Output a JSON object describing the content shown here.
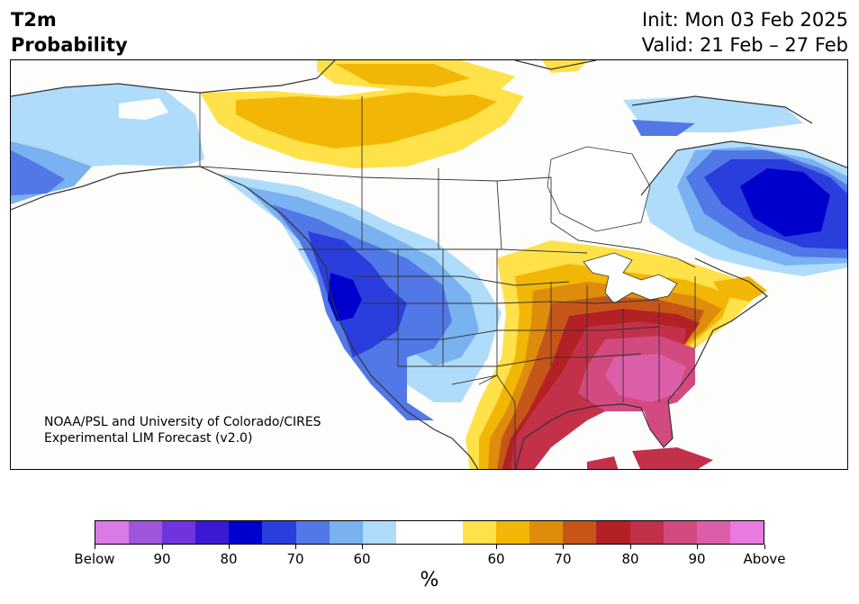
{
  "header": {
    "variable": "T2m",
    "product": "Probability",
    "init": "Init: Mon 03 Feb 2025",
    "valid": "Valid: 21 Feb – 27 Feb"
  },
  "credit": {
    "line1": "NOAA/PSL and University of Colorado/CIRES",
    "line2": "Experimental LIM Forecast (v2.0)"
  },
  "colorbar": {
    "colors": [
      "#d97ae6",
      "#a055dd",
      "#6f34db",
      "#3b18d4",
      "#0000cc",
      "#2a3edd",
      "#5277e6",
      "#79b1f1",
      "#b0dcfb",
      "#ffffff",
      "#ffffff",
      "#ffe14a",
      "#f2b706",
      "#de8c0c",
      "#c65618",
      "#b42124",
      "#c2304a",
      "#d24a80",
      "#dd5ea8",
      "#e97ae0"
    ],
    "tick_labels": [
      "Below",
      "90",
      "80",
      "70",
      "60",
      "60",
      "70",
      "80",
      "90",
      "Above"
    ],
    "units": "%"
  },
  "map": {
    "categories": {
      "below_strong": "#0000cc",
      "below_mid": "#2a3edd",
      "below_light": "#5277e6",
      "below_pale": "#79b1f1",
      "below_faint": "#b0dcfb",
      "above_faint": "#ffe14a",
      "above_light": "#f2b706",
      "above_mid": "#de8c0c",
      "above_orange": "#c65618",
      "above_red": "#b42124",
      "above_crimson": "#c2304a",
      "above_pink": "#d24a80",
      "above_magenta": "#dd5ea8"
    },
    "background": "#fdfdfb",
    "border_color": "#333333"
  }
}
